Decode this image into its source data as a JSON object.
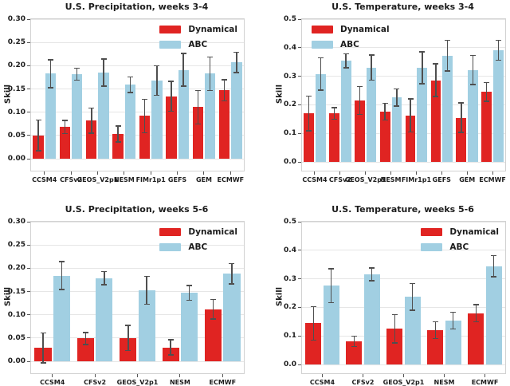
{
  "colors": {
    "dynamical": "#e02422",
    "abc": "#a1cfe2",
    "error_bar": "#4f4f4f",
    "grid": "#e6e6e6",
    "spine": "#d2d2d2",
    "text": "#1c1c1c",
    "background": "#ffffff"
  },
  "chart_data": [
    {
      "type": "bar",
      "title": "U.S. Precipitation, weeks 3-4",
      "ylabel": "Skill",
      "ylim": [
        -0.0257,
        0.3
      ],
      "grid": true,
      "yticks": [
        {
          "v": 0.0,
          "label": "0.00"
        },
        {
          "v": 0.05,
          "label": "0.05"
        },
        {
          "v": 0.1,
          "label": "0.10"
        },
        {
          "v": 0.15,
          "label": "0.15"
        },
        {
          "v": 0.2,
          "label": "0.20"
        },
        {
          "v": 0.25,
          "label": "0.25"
        },
        {
          "v": 0.3,
          "label": "0.30"
        }
      ],
      "categories": [
        "CCSM4",
        "CFSv2",
        "GEOS_V2p1",
        "NESM",
        "FIMr1p1",
        "GEFS",
        "GEM",
        "ECMWF"
      ],
      "legend": {
        "position": "upper-right",
        "entries": [
          {
            "label": "Dynamical",
            "color_key": "dynamical"
          },
          {
            "label": "ABC",
            "color_key": "abc"
          }
        ]
      },
      "series": [
        {
          "name": "Dynamical",
          "color_key": "dynamical",
          "values": [
            0.05,
            0.068,
            0.082,
            0.053,
            0.092,
            0.134,
            0.111,
            0.147
          ],
          "errors": [
            0.033,
            0.014,
            0.027,
            0.017,
            0.036,
            0.032,
            0.036,
            0.023
          ]
        },
        {
          "name": "ABC",
          "color_key": "abc",
          "values": [
            0.183,
            0.182,
            0.185,
            0.159,
            0.168,
            0.191,
            0.183,
            0.207
          ],
          "errors": [
            0.03,
            0.013,
            0.029,
            0.017,
            0.032,
            0.035,
            0.036,
            0.022
          ]
        }
      ]
    },
    {
      "type": "bar",
      "title": "U.S. Temperature, weeks 3-4",
      "ylabel": "Skill",
      "ylim": [
        -0.0307,
        0.5
      ],
      "grid": true,
      "yticks": [
        {
          "v": 0.0,
          "label": "0.0"
        },
        {
          "v": 0.1,
          "label": "0.1"
        },
        {
          "v": 0.2,
          "label": "0.2"
        },
        {
          "v": 0.3,
          "label": "0.3"
        },
        {
          "v": 0.4,
          "label": "0.4"
        },
        {
          "v": 0.5,
          "label": "0.5"
        }
      ],
      "categories": [
        "CCSM4",
        "CFSv2",
        "GEOS_V2p1",
        "NESM",
        "FIMr1p1",
        "GEFS",
        "GEM",
        "ECMWF"
      ],
      "legend": {
        "position": "upper-left",
        "entries": [
          {
            "label": "Dynamical",
            "color_key": "dynamical"
          },
          {
            "label": "ABC",
            "color_key": "abc"
          }
        ]
      },
      "series": [
        {
          "name": "Dynamical",
          "color_key": "dynamical",
          "values": [
            0.17,
            0.17,
            0.215,
            0.176,
            0.163,
            0.286,
            0.155,
            0.245
          ],
          "errors": [
            0.061,
            0.02,
            0.049,
            0.029,
            0.058,
            0.057,
            0.052,
            0.033
          ]
        },
        {
          "name": "ABC",
          "color_key": "abc",
          "values": [
            0.308,
            0.354,
            0.33,
            0.226,
            0.33,
            0.372,
            0.322,
            0.391
          ],
          "errors": [
            0.057,
            0.024,
            0.044,
            0.03,
            0.056,
            0.054,
            0.051,
            0.035
          ]
        }
      ]
    },
    {
      "type": "bar",
      "title": "U.S. Precipitation, weeks 5-6",
      "ylabel": "Skill",
      "ylim": [
        -0.0257,
        0.3
      ],
      "grid": true,
      "yticks": [
        {
          "v": 0.0,
          "label": "0.00"
        },
        {
          "v": 0.05,
          "label": "0.05"
        },
        {
          "v": 0.1,
          "label": "0.10"
        },
        {
          "v": 0.15,
          "label": "0.15"
        },
        {
          "v": 0.2,
          "label": "0.20"
        },
        {
          "v": 0.25,
          "label": "0.25"
        },
        {
          "v": 0.3,
          "label": "0.30"
        }
      ],
      "categories": [
        "CCSM4",
        "CFSv2",
        "GEOS_V2p1",
        "NESM",
        "ECMWF"
      ],
      "legend": {
        "position": "upper-right",
        "entries": [
          {
            "label": "Dynamical",
            "color_key": "dynamical"
          },
          {
            "label": "ABC",
            "color_key": "abc"
          }
        ]
      },
      "series": [
        {
          "name": "Dynamical",
          "color_key": "dynamical",
          "values": [
            0.029,
            0.049,
            0.05,
            0.03,
            0.112
          ],
          "errors": [
            0.032,
            0.013,
            0.027,
            0.016,
            0.021
          ]
        },
        {
          "name": "ABC",
          "color_key": "abc",
          "values": [
            0.184,
            0.179,
            0.153,
            0.147,
            0.188
          ],
          "errors": [
            0.03,
            0.014,
            0.03,
            0.016,
            0.022
          ]
        }
      ]
    },
    {
      "type": "bar",
      "title": "U.S. Temperature, weeks 5-6",
      "ylabel": "Skill",
      "ylim": [
        -0.0307,
        0.5
      ],
      "grid": true,
      "yticks": [
        {
          "v": 0.0,
          "label": "0.0"
        },
        {
          "v": 0.1,
          "label": "0.1"
        },
        {
          "v": 0.2,
          "label": "0.2"
        },
        {
          "v": 0.3,
          "label": "0.3"
        },
        {
          "v": 0.4,
          "label": "0.4"
        },
        {
          "v": 0.5,
          "label": "0.5"
        }
      ],
      "categories": [
        "CCSM4",
        "CFSv2",
        "GEOS_V2p1",
        "NESM",
        "ECMWF"
      ],
      "legend": {
        "position": "upper-right",
        "entries": [
          {
            "label": "Dynamical",
            "color_key": "dynamical"
          },
          {
            "label": "ABC",
            "color_key": "abc"
          }
        ]
      },
      "series": [
        {
          "name": "Dynamical",
          "color_key": "dynamical",
          "values": [
            0.144,
            0.081,
            0.125,
            0.12,
            0.18
          ],
          "errors": [
            0.059,
            0.018,
            0.049,
            0.029,
            0.03
          ]
        },
        {
          "name": "ABC",
          "color_key": "abc",
          "values": [
            0.276,
            0.316,
            0.237,
            0.154,
            0.344
          ],
          "errors": [
            0.059,
            0.022,
            0.047,
            0.029,
            0.037
          ]
        }
      ]
    }
  ]
}
